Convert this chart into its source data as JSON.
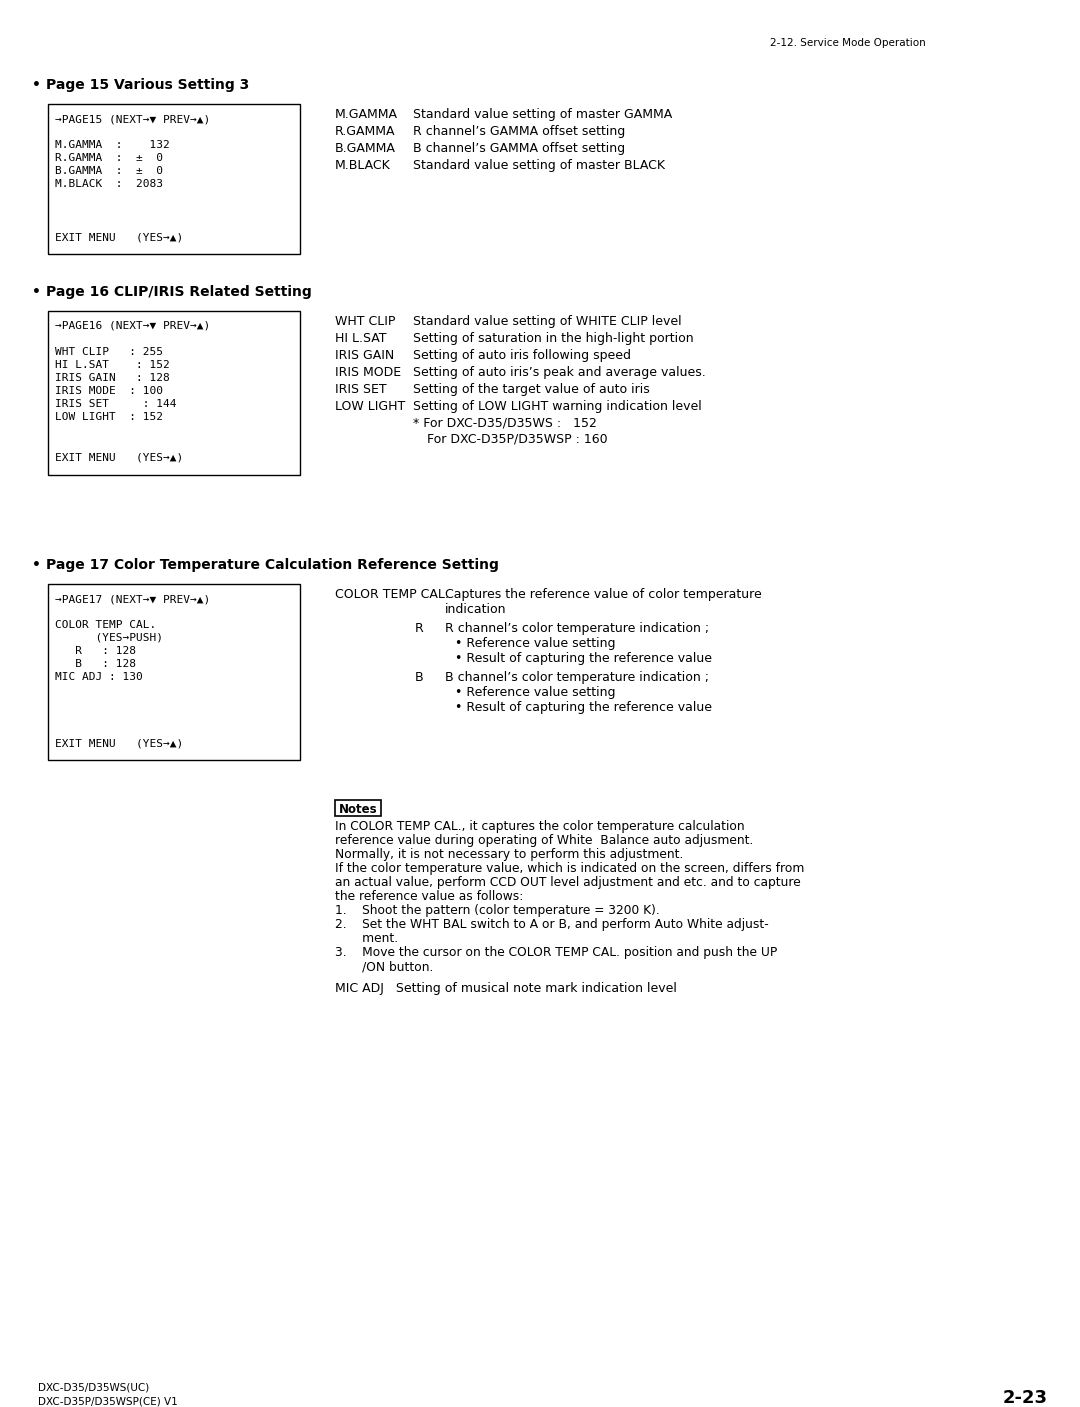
{
  "page_header": "2-12. Service Mode Operation",
  "bg_color": "#ffffff",
  "section1_title": "Page 15 Various Setting 3",
  "section2_title": "Page 16 CLIP/IRIS Related Setting",
  "section3_title": "Page 17 Color Temperature Calculation Reference Setting",
  "footer_left1": "DXC-D35/D35WS(UC)",
  "footer_left2": "DXC-D35P/D35WSP(CE) V1",
  "footer_right": "2-23",
  "notes_label": "Notes",
  "notes_lines": [
    "In COLOR TEMP CAL., it captures the color temperature calculation",
    "reference value during operating of White  Balance auto adjusment.",
    "Normally, it is not necessary to perform this adjustment.",
    "If the color temperature value, which is indicated on the screen, differs from",
    "an actual value, perform CCD OUT level adjustment and etc. and to capture",
    "the reference value as follows:",
    "1.    Shoot the pattern (color temperature = 3200 K).",
    "2.    Set the WHT BAL switch to A or B, and perform Auto White adjust-",
    "       ment.",
    "3.    Move the cursor on the COLOR TEMP CAL. position and push the UP",
    "       /ON button."
  ],
  "mic_adj_line": "MIC ADJ   Setting of musical note mark indication level"
}
